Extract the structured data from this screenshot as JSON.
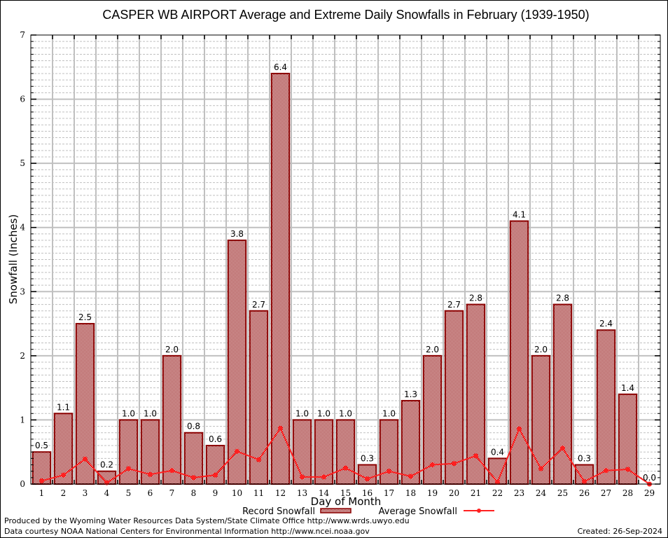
{
  "chart_data": {
    "type": "bar",
    "title": "CASPER WB AIRPORT Average and Extreme Daily Snowfalls in February (1939-1950)",
    "xlabel": "Day of Month",
    "ylabel": "Snowfall (Inches)",
    "ylim": [
      0,
      7
    ],
    "yticks": [
      "0",
      "1",
      "2",
      "3",
      "4",
      "5",
      "6",
      "7"
    ],
    "grid": true,
    "legend_position": "bottom-center",
    "categories": [
      "1",
      "2",
      "3",
      "4",
      "5",
      "6",
      "7",
      "8",
      "9",
      "10",
      "11",
      "12",
      "13",
      "14",
      "15",
      "16",
      "17",
      "18",
      "19",
      "20",
      "21",
      "22",
      "23",
      "24",
      "25",
      "26",
      "27",
      "28",
      "29"
    ],
    "series": [
      {
        "name": "Record Snowfall",
        "type": "bar",
        "color": "#8b0000",
        "values": [
          0.5,
          1.1,
          2.5,
          0.2,
          1.0,
          1.0,
          2.0,
          0.8,
          0.6,
          3.8,
          2.7,
          6.4,
          1.0,
          1.0,
          1.0,
          0.3,
          1.0,
          1.3,
          2.0,
          2.7,
          2.8,
          0.4,
          4.1,
          2.0,
          2.8,
          0.3,
          2.4,
          1.4,
          0.0
        ],
        "labels": [
          "0.5",
          "1.1",
          "2.5",
          "0.2",
          "1.0",
          "1.0",
          "2.0",
          "0.8",
          "0.6",
          "3.8",
          "2.7",
          "6.4",
          "1.0",
          "1.0",
          "1.0",
          "0.3",
          "1.0",
          "1.3",
          "2.0",
          "2.7",
          "2.8",
          "0.4",
          "4.1",
          "2.0",
          "2.8",
          "0.3",
          "2.4",
          "1.4",
          "0.0"
        ]
      },
      {
        "name": "Average Snowfall",
        "type": "line",
        "color": "#ff2020",
        "values": [
          0.05,
          0.14,
          0.39,
          0.02,
          0.24,
          0.15,
          0.21,
          0.1,
          0.14,
          0.51,
          0.38,
          0.87,
          0.11,
          0.11,
          0.25,
          0.08,
          0.2,
          0.12,
          0.3,
          0.32,
          0.44,
          0.03,
          0.86,
          0.24,
          0.56,
          0.04,
          0.21,
          0.23,
          0.0
        ]
      }
    ]
  },
  "footer": {
    "produced_by": "Produced by the Wyoming Water Resources Data System/State Climate Office http://www.wrds.uwyo.edu",
    "data_courtesy": "Data courtesy NOAA National Centers for Environmental Information http://www.ncei.noaa.gov",
    "created": "Created: 26-Sep-2024"
  }
}
